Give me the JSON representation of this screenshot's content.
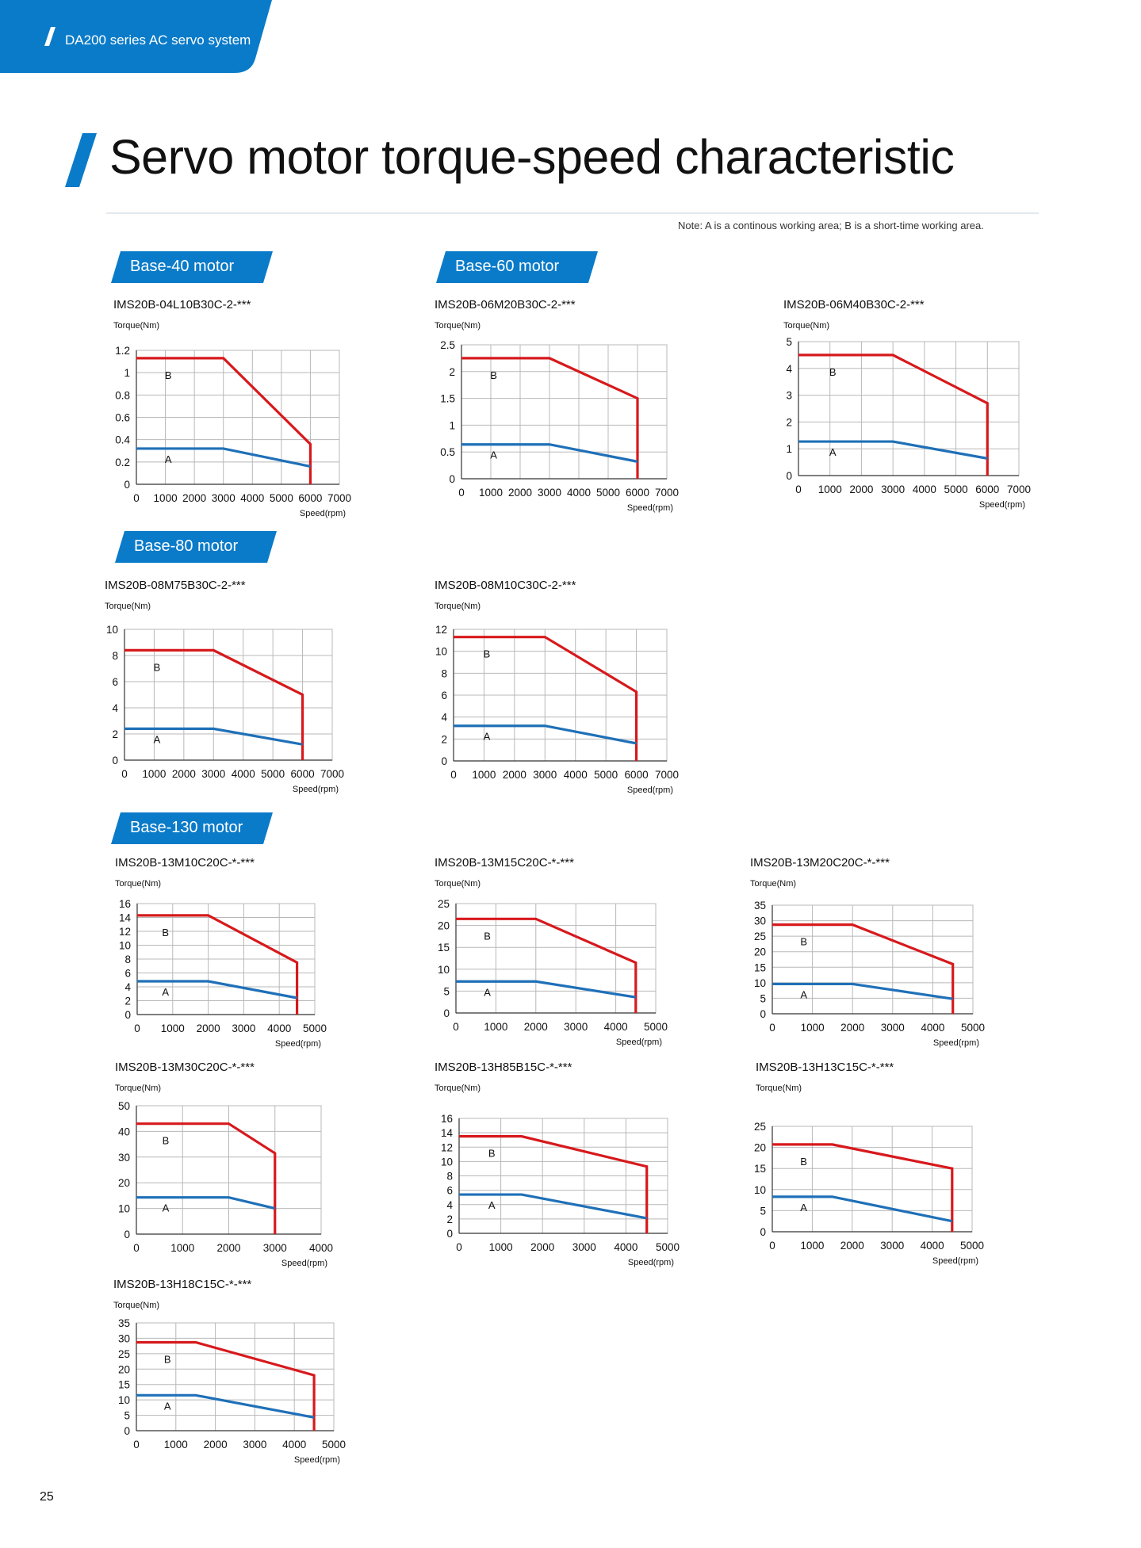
{
  "header": {
    "title": "DA200 series AC servo system",
    "brand_color": "#0a7bc9"
  },
  "page": {
    "title": "Servo motor torque-speed characteristic",
    "note": "Note: A is a continous working area; B is a short-time working area.",
    "number": "25"
  },
  "sections": [
    {
      "id": "base40",
      "label": "Base-40 motor"
    },
    {
      "id": "base60",
      "label": "Base-60 motor"
    },
    {
      "id": "base80",
      "label": "Base-80 motor"
    },
    {
      "id": "base130",
      "label": "Base-130 motor"
    }
  ],
  "chart_data": [
    {
      "type": "line",
      "title": "IMS20B-04L10B30C-2-***",
      "ylabel": "Torque(Nm)",
      "xlabel": "Speed(rpm)",
      "xlim": [
        0,
        7000
      ],
      "ylim": [
        0,
        1.2
      ],
      "grid": true,
      "xticks": [
        0,
        1000,
        2000,
        3000,
        4000,
        5000,
        6000,
        7000
      ],
      "yticks": [
        0,
        0.2,
        0.4,
        0.6,
        0.8,
        1,
        1.2
      ],
      "series": [
        {
          "label": "B",
          "color": "#d7191c",
          "x": [
            0,
            3000,
            6000,
            6000
          ],
          "y": [
            1.13,
            1.13,
            0.36,
            0
          ]
        },
        {
          "label": "A",
          "color": "#1f70b8",
          "x": [
            0,
            3000,
            6000
          ],
          "y": [
            0.32,
            0.32,
            0.16
          ]
        }
      ]
    },
    {
      "type": "line",
      "title": "IMS20B-06M20B30C-2-***",
      "ylabel": "Torque(Nm)",
      "xlabel": "Speed(rpm)",
      "xlim": [
        0,
        7000
      ],
      "ylim": [
        0,
        2.5
      ],
      "grid": true,
      "xticks": [
        0,
        1000,
        2000,
        3000,
        4000,
        5000,
        6000,
        7000
      ],
      "yticks": [
        0,
        0.5,
        1,
        1.5,
        2,
        2.5
      ],
      "series": [
        {
          "label": "B",
          "color": "#d7191c",
          "x": [
            0,
            3000,
            6000,
            6000
          ],
          "y": [
            2.25,
            2.25,
            1.5,
            0
          ]
        },
        {
          "label": "A",
          "color": "#1f70b8",
          "x": [
            0,
            3000,
            6000
          ],
          "y": [
            0.64,
            0.64,
            0.32
          ]
        }
      ]
    },
    {
      "type": "line",
      "title": "IMS20B-06M40B30C-2-***",
      "ylabel": "Torque(Nm)",
      "xlabel": "Speed(rpm)",
      "xlim": [
        0,
        7000
      ],
      "ylim": [
        0,
        5
      ],
      "grid": true,
      "xticks": [
        0,
        1000,
        2000,
        3000,
        4000,
        5000,
        6000,
        7000
      ],
      "yticks": [
        0,
        1,
        2,
        3,
        4,
        5
      ],
      "series": [
        {
          "label": "B",
          "color": "#d7191c",
          "x": [
            0,
            3000,
            6000,
            6000
          ],
          "y": [
            4.5,
            4.5,
            2.7,
            0
          ]
        },
        {
          "label": "A",
          "color": "#1f70b8",
          "x": [
            0,
            3000,
            6000
          ],
          "y": [
            1.27,
            1.27,
            0.64
          ]
        }
      ]
    },
    {
      "type": "line",
      "title": "IMS20B-08M75B30C-2-***",
      "ylabel": "Torque(Nm)",
      "xlabel": "Speed(rpm)",
      "xlim": [
        0,
        7000
      ],
      "ylim": [
        0,
        10
      ],
      "grid": true,
      "xticks": [
        0,
        1000,
        2000,
        3000,
        4000,
        5000,
        6000,
        7000
      ],
      "yticks": [
        0,
        2,
        4,
        6,
        8,
        10
      ],
      "series": [
        {
          "label": "B",
          "color": "#d7191c",
          "x": [
            0,
            3000,
            6000,
            6000
          ],
          "y": [
            8.4,
            8.4,
            5.0,
            0
          ]
        },
        {
          "label": "A",
          "color": "#1f70b8",
          "x": [
            0,
            3000,
            6000
          ],
          "y": [
            2.4,
            2.4,
            1.2
          ]
        }
      ]
    },
    {
      "type": "line",
      "title": "IMS20B-08M10C30C-2-***",
      "ylabel": "Torque(Nm)",
      "xlabel": "Speed(rpm)",
      "xlim": [
        0,
        7000
      ],
      "ylim": [
        0,
        12
      ],
      "grid": true,
      "xticks": [
        0,
        1000,
        2000,
        3000,
        4000,
        5000,
        6000,
        7000
      ],
      "yticks": [
        0,
        2,
        4,
        6,
        8,
        10,
        12
      ],
      "series": [
        {
          "label": "B",
          "color": "#d7191c",
          "x": [
            0,
            3000,
            6000,
            6000
          ],
          "y": [
            11.3,
            11.3,
            6.3,
            0
          ]
        },
        {
          "label": "A",
          "color": "#1f70b8",
          "x": [
            0,
            3000,
            6000
          ],
          "y": [
            3.2,
            3.2,
            1.6
          ]
        }
      ]
    },
    {
      "type": "line",
      "title": "IMS20B-13M10C20C-*-***",
      "ylabel": "Torque(Nm)",
      "xlabel": "Speed(rpm)",
      "xlim": [
        0,
        5000
      ],
      "ylim": [
        0,
        16
      ],
      "grid": true,
      "xticks": [
        0,
        1000,
        2000,
        3000,
        4000,
        5000
      ],
      "yticks": [
        0,
        2,
        4,
        6,
        8,
        10,
        12,
        14,
        16
      ],
      "series": [
        {
          "label": "B",
          "color": "#d7191c",
          "x": [
            0,
            2000,
            4500,
            4500
          ],
          "y": [
            14.3,
            14.3,
            7.5,
            0
          ]
        },
        {
          "label": "A",
          "color": "#1f70b8",
          "x": [
            0,
            2000,
            4500
          ],
          "y": [
            4.8,
            4.8,
            2.4
          ]
        }
      ]
    },
    {
      "type": "line",
      "title": "IMS20B-13M15C20C-*-***",
      "ylabel": "Torque(Nm)",
      "xlabel": "Speed(rpm)",
      "xlim": [
        0,
        5000
      ],
      "ylim": [
        0,
        25
      ],
      "grid": true,
      "xticks": [
        0,
        1000,
        2000,
        3000,
        4000,
        5000
      ],
      "yticks": [
        0,
        5,
        10,
        15,
        20,
        25
      ],
      "series": [
        {
          "label": "B",
          "color": "#d7191c",
          "x": [
            0,
            2000,
            4500,
            4500
          ],
          "y": [
            21.5,
            21.5,
            11.5,
            0
          ]
        },
        {
          "label": "A",
          "color": "#1f70b8",
          "x": [
            0,
            2000,
            4500
          ],
          "y": [
            7.2,
            7.2,
            3.6
          ]
        }
      ]
    },
    {
      "type": "line",
      "title": "IMS20B-13M20C20C-*-***",
      "ylabel": "Torque(Nm)",
      "xlabel": "Speed(rpm)",
      "xlim": [
        0,
        5000
      ],
      "ylim": [
        0,
        35
      ],
      "grid": true,
      "xticks": [
        0,
        1000,
        2000,
        3000,
        4000,
        5000
      ],
      "yticks": [
        0,
        5,
        10,
        15,
        20,
        25,
        30,
        35
      ],
      "series": [
        {
          "label": "B",
          "color": "#d7191c",
          "x": [
            0,
            2000,
            4500,
            4500
          ],
          "y": [
            28.7,
            28.7,
            16,
            0
          ]
        },
        {
          "label": "A",
          "color": "#1f70b8",
          "x": [
            0,
            2000,
            4500
          ],
          "y": [
            9.6,
            9.6,
            4.8
          ]
        }
      ]
    },
    {
      "type": "line",
      "title": "IMS20B-13M30C20C-*-***",
      "ylabel": "Torque(Nm)",
      "xlabel": "Speed(rpm)",
      "xlim": [
        0,
        4000
      ],
      "ylim": [
        0,
        50
      ],
      "grid": true,
      "xticks": [
        0,
        1000,
        2000,
        3000,
        4000
      ],
      "yticks": [
        0,
        10,
        20,
        30,
        40,
        50
      ],
      "series": [
        {
          "label": "B",
          "color": "#d7191c",
          "x": [
            0,
            2000,
            3000,
            3000
          ],
          "y": [
            43,
            43,
            31.5,
            0
          ]
        },
        {
          "label": "A",
          "color": "#1f70b8",
          "x": [
            0,
            2000,
            3000
          ],
          "y": [
            14.3,
            14.3,
            10
          ]
        }
      ]
    },
    {
      "type": "line",
      "title": "IMS20B-13H85B15C-*-***",
      "ylabel": "Torque(Nm)",
      "xlabel": "Speed(rpm)",
      "xlim": [
        0,
        5000
      ],
      "ylim": [
        0,
        16
      ],
      "grid": true,
      "xticks": [
        0,
        1000,
        2000,
        3000,
        4000,
        5000
      ],
      "yticks": [
        0,
        2,
        4,
        6,
        8,
        10,
        12,
        14,
        16
      ],
      "series": [
        {
          "label": "B",
          "color": "#d7191c",
          "x": [
            0,
            1500,
            4500,
            4500
          ],
          "y": [
            13.5,
            13.5,
            9.3,
            0
          ]
        },
        {
          "label": "A",
          "color": "#1f70b8",
          "x": [
            0,
            1500,
            4500
          ],
          "y": [
            5.4,
            5.4,
            2.1
          ]
        }
      ]
    },
    {
      "type": "line",
      "title": "IMS20B-13H13C15C-*-***",
      "ylabel": "Torque(Nm)",
      "xlabel": "Speed(rpm)",
      "xlim": [
        0,
        5000
      ],
      "ylim": [
        0,
        25
      ],
      "grid": true,
      "xticks": [
        0,
        1000,
        2000,
        3000,
        4000,
        5000
      ],
      "yticks": [
        0,
        5,
        10,
        15,
        20,
        25
      ],
      "series": [
        {
          "label": "B",
          "color": "#d7191c",
          "x": [
            0,
            1500,
            4500,
            4500
          ],
          "y": [
            20.7,
            20.7,
            15,
            0
          ]
        },
        {
          "label": "A",
          "color": "#1f70b8",
          "x": [
            0,
            1500,
            4500
          ],
          "y": [
            8.3,
            8.3,
            2.5
          ]
        }
      ]
    },
    {
      "type": "line",
      "title": "IMS20B-13H18C15C-*-***",
      "ylabel": "Torque(Nm)",
      "xlabel": "Speed(rpm)",
      "xlim": [
        0,
        5000
      ],
      "ylim": [
        0,
        35
      ],
      "grid": true,
      "xticks": [
        0,
        1000,
        2000,
        3000,
        4000,
        5000
      ],
      "yticks": [
        0,
        5,
        10,
        15,
        20,
        25,
        30,
        35
      ],
      "series": [
        {
          "label": "B",
          "color": "#d7191c",
          "x": [
            0,
            1500,
            4500,
            4500
          ],
          "y": [
            28.7,
            28.7,
            18,
            0
          ]
        },
        {
          "label": "A",
          "color": "#1f70b8",
          "x": [
            0,
            1500,
            4500
          ],
          "y": [
            11.5,
            11.5,
            4.3
          ]
        }
      ]
    }
  ]
}
